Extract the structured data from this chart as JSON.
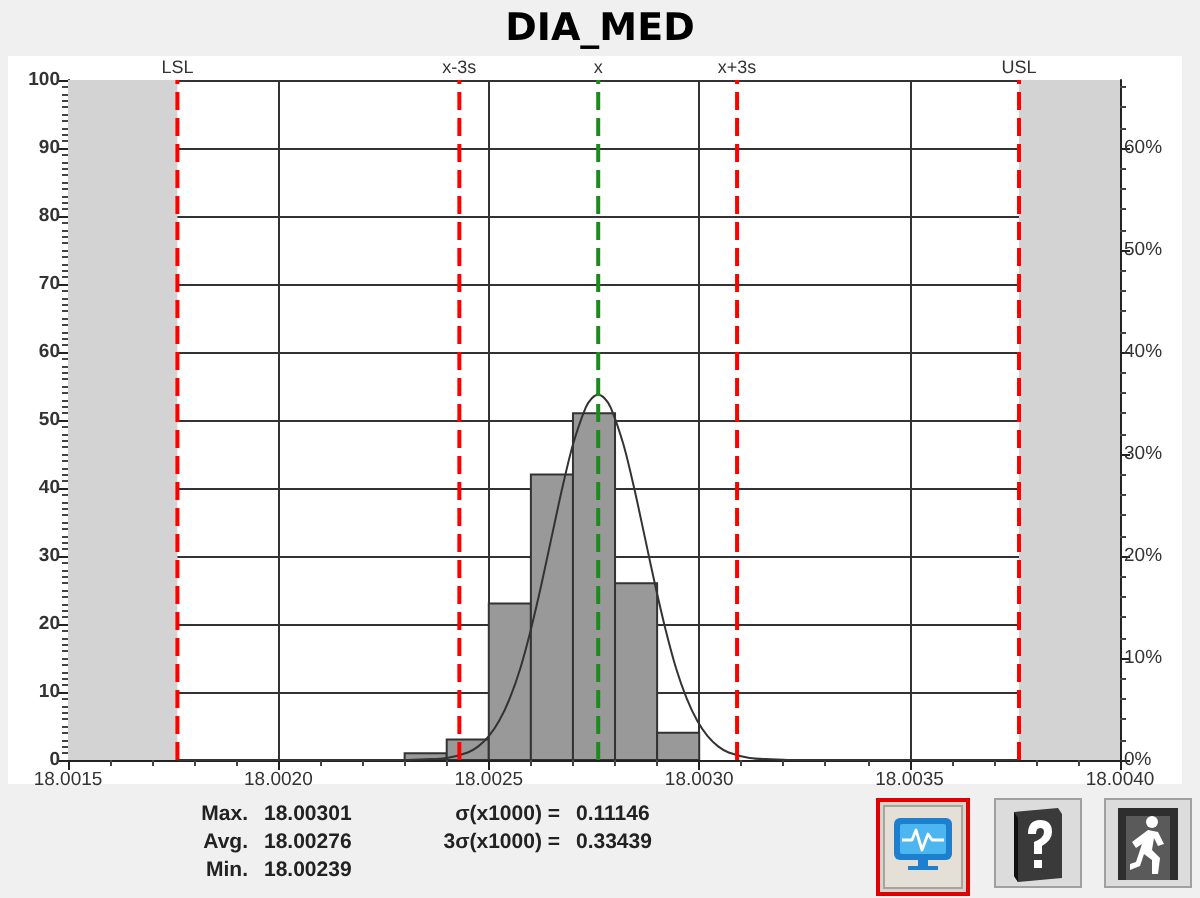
{
  "chart_data": {
    "type": "histogram",
    "title": "DIA_MED",
    "series": [
      {
        "color": "#999999",
        "bins": [
          18.0023,
          18.0024,
          18.0025,
          18.0026,
          18.0027,
          18.0028,
          18.0029,
          18.003
        ],
        "values": [
          1,
          3,
          23,
          42,
          51,
          26,
          4
        ]
      },
      {
        "type": "line",
        "color": "#333333",
        "marker": "none",
        "x": [
          18.00176,
          18.0023,
          18.00235,
          18.0024,
          18.00245,
          18.002475,
          18.0025,
          18.002525,
          18.00255,
          18.002575,
          18.0026,
          18.002625,
          18.00265,
          18.002675,
          18.0027,
          18.00273,
          18.002745,
          18.00276,
          18.002775,
          18.00279,
          18.00282,
          18.002845,
          18.00287,
          18.002895,
          18.00292,
          18.002945,
          18.00297,
          18.002995,
          18.00302,
          18.003045,
          18.00307,
          18.00312,
          18.00317,
          18.00322,
          18.00376
        ],
        "values": [
          0,
          0,
          0.1,
          0.3,
          1.1,
          2,
          3.5,
          5.8,
          9.1,
          13.5,
          19.2,
          25.8,
          33,
          40.1,
          46.4,
          51.8,
          53.2,
          53.7,
          53.2,
          51.8,
          46.4,
          40.1,
          33,
          25.8,
          19.2,
          13.5,
          9.1,
          5.8,
          3.5,
          2,
          1.1,
          0.3,
          0.1,
          0,
          0
        ]
      }
    ],
    "xlim": [
      18.0015,
      18.004
    ],
    "xticks": [
      {
        "value": 18.0015,
        "label": "18.0015"
      },
      {
        "value": 18.002,
        "label": "18.0020"
      },
      {
        "value": 18.0025,
        "label": "18.0025"
      },
      {
        "value": 18.003,
        "label": "18.0030"
      },
      {
        "value": 18.0035,
        "label": "18.0035"
      },
      {
        "value": 18.004,
        "label": "18.0040"
      }
    ],
    "ylim": [
      0,
      100
    ],
    "yticks": [
      0,
      10,
      20,
      30,
      40,
      50,
      60,
      70,
      80,
      90,
      100
    ],
    "y2lim": [
      0,
      66.67
    ],
    "y2ticks": [
      {
        "value": 0,
        "label": "0%"
      },
      {
        "value": 10,
        "label": "10%"
      },
      {
        "value": 20,
        "label": "20%"
      },
      {
        "value": 30,
        "label": "30%"
      },
      {
        "value": 40,
        "label": "40%"
      },
      {
        "value": 50,
        "label": "50%"
      },
      {
        "value": 60,
        "label": "60%"
      }
    ],
    "grid": true,
    "ref_lines": [
      {
        "axis": "x",
        "value": 18.00176,
        "label": "LSL",
        "color": "#ff0000",
        "line_style": "dashed"
      },
      {
        "axis": "x",
        "value": 18.00243,
        "label": "x-3s",
        "color": "#ff0000",
        "line_style": "dashed"
      },
      {
        "axis": "x",
        "value": 18.00276,
        "label": "x",
        "color": "#1a8c1a",
        "line_style": "dashed"
      },
      {
        "axis": "x",
        "value": 18.00309,
        "label": "x+3s",
        "color": "#ff0000",
        "line_style": "dashed"
      },
      {
        "axis": "x",
        "value": 18.00376,
        "label": "USL",
        "color": "#ff0000",
        "line_style": "dashed"
      }
    ],
    "bands": [
      {
        "axis": "x",
        "from": 18.0015,
        "to": 18.00176,
        "color": "#d3d3d3"
      },
      {
        "axis": "x",
        "from": 18.00376,
        "to": 18.004,
        "color": "#d3d3d3"
      }
    ],
    "annotations": [
      "Max.",
      "18.00301",
      "Avg.",
      "18.00276",
      "Min.",
      "18.00239",
      "σ(x1000) =",
      "0.11146",
      "3σ(x1000) =",
      "0.33439"
    ]
  }
}
